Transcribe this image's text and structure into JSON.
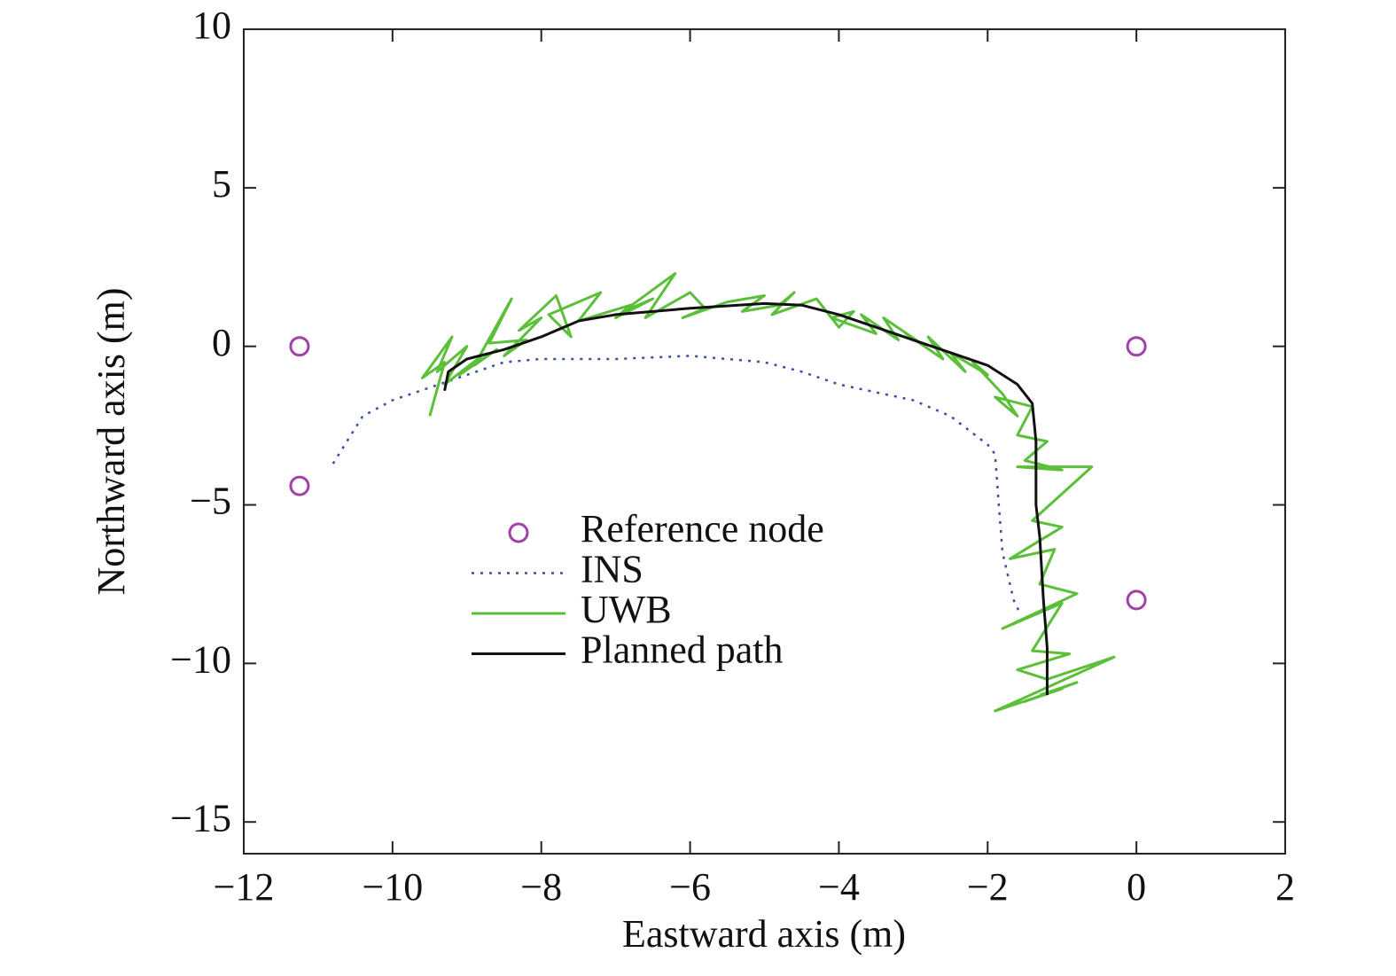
{
  "chart_data": {
    "type": "line",
    "xlabel": "Eastward axis (m)",
    "ylabel": "Northward axis (m)",
    "xlim": [
      -12,
      2
    ],
    "ylim": [
      -16,
      10
    ],
    "xticks": [
      {
        "value": -12,
        "label": "−12"
      },
      {
        "value": -10,
        "label": "−10"
      },
      {
        "value": -8,
        "label": "−8"
      },
      {
        "value": -6,
        "label": "−6"
      },
      {
        "value": -4,
        "label": "−4"
      },
      {
        "value": -2,
        "label": "−2"
      },
      0,
      2
    ],
    "yticks": [
      {
        "value": -15,
        "label": "−15"
      },
      {
        "value": -10,
        "label": "−10"
      },
      {
        "value": -5,
        "label": "−5"
      },
      0,
      5,
      10
    ],
    "series": [
      {
        "name": "Reference node",
        "color": "#a040a8",
        "marker": "circle",
        "line": "none",
        "x": [
          -11.25,
          -11.25,
          0,
          0
        ],
        "values": [
          0,
          -4.4,
          0,
          -8
        ]
      },
      {
        "name": "INS",
        "color": "#3a4fa0",
        "line": "dotted",
        "x": [
          -10.8,
          -10.4,
          -10,
          -9.5,
          -9,
          -8.5,
          -8,
          -7,
          -6,
          -5,
          -4.5,
          -4,
          -3,
          -2.5,
          -2,
          -1.9,
          -1.85,
          -1.8,
          -1.65,
          -1.57
        ],
        "values": [
          -3.7,
          -2.2,
          -1.7,
          -1.3,
          -0.9,
          -0.5,
          -0.4,
          -0.4,
          -0.3,
          -0.5,
          -0.8,
          -1.2,
          -1.7,
          -2.2,
          -3.1,
          -3.4,
          -5,
          -6.5,
          -8,
          -8.4
        ]
      },
      {
        "name": "UWB",
        "color": "#5cbf3a",
        "line": "solid",
        "x": [
          -9.5,
          -9.3,
          -9.6,
          -9.2,
          -9.4,
          -9.0,
          -9.3,
          -8.8,
          -9.1,
          -8.6,
          -8.9,
          -8.4,
          -8.7,
          -8.2,
          -8.5,
          -8.0,
          -8.3,
          -7.8,
          -7.6,
          -7.9,
          -7.2,
          -7.5,
          -6.8,
          -7.0,
          -6.5,
          -6.9,
          -6.2,
          -6.6,
          -6.0,
          -5.8,
          -6.1,
          -5.5,
          -5.0,
          -5.3,
          -4.8,
          -4.6,
          -4.9,
          -4.3,
          -4.0,
          -3.8,
          -4.1,
          -3.5,
          -3.7,
          -3.2,
          -3.4,
          -2.9,
          -3.1,
          -2.6,
          -2.8,
          -2.3,
          -2.5,
          -2.0,
          -2.2,
          -1.8,
          -1.6,
          -1.9,
          -1.4,
          -1.6,
          -1.2,
          -1.5,
          -1.0,
          -1.6,
          -0.6,
          -1.4,
          -1.0,
          -1.7,
          -1.1,
          -1.3,
          -0.8,
          -1.8,
          -1.0,
          -1.4,
          -0.9,
          -1.6,
          -1.2,
          -0.3,
          -1.9,
          -1.0,
          -1.5,
          -0.8,
          -1.3
        ],
        "values": [
          -2.2,
          -0.5,
          -1.0,
          0.3,
          -0.8,
          0.0,
          -1.2,
          -0.3,
          -0.9,
          -0.1,
          -0.6,
          1.5,
          0.1,
          0.2,
          -0.3,
          0.9,
          0.5,
          1.6,
          0.3,
          1.0,
          1.7,
          0.8,
          1.3,
          0.9,
          1.5,
          1.1,
          2.3,
          0.9,
          1.7,
          1.2,
          0.9,
          1.4,
          1.6,
          1.1,
          1.3,
          1.7,
          1.0,
          1.5,
          0.6,
          1.1,
          0.9,
          0.4,
          1.0,
          0.2,
          0.9,
          0.1,
          0.4,
          -0.4,
          0.3,
          -0.8,
          -0.2,
          -0.9,
          -0.5,
          -1.5,
          -2.2,
          -1.6,
          -1.9,
          -2.8,
          -3.0,
          -3.6,
          -3.9,
          -3.8,
          -3.8,
          -5.5,
          -5.7,
          -6.7,
          -6.4,
          -7.5,
          -7.8,
          -8.9,
          -8.1,
          -9.6,
          -9.7,
          -10.2,
          -10.5,
          -9.8,
          -11.5,
          -10.8,
          -11.2,
          -10.6,
          -11.0
        ]
      },
      {
        "name": "Planned path",
        "color": "#111111",
        "line": "solid",
        "x": [
          -9.3,
          -9.25,
          -9,
          -8.5,
          -8,
          -7.5,
          -7,
          -6,
          -5,
          -4.5,
          -4,
          -3.5,
          -3,
          -2.5,
          -2,
          -1.6,
          -1.4,
          -1.35,
          -1.35,
          -1.3,
          -1.25,
          -1.2,
          -1.2
        ],
        "values": [
          -1.4,
          -0.8,
          -0.4,
          -0.1,
          0.3,
          0.8,
          1.0,
          1.2,
          1.35,
          1.3,
          1.0,
          0.6,
          0.2,
          -0.2,
          -0.6,
          -1.2,
          -1.8,
          -3,
          -5,
          -6,
          -8,
          -9.5,
          -11
        ]
      }
    ]
  }
}
